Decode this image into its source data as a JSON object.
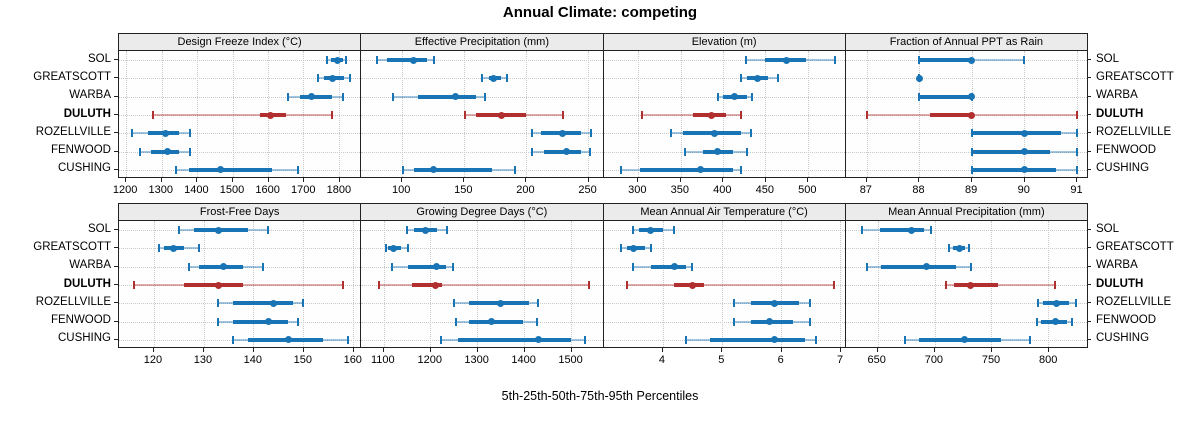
{
  "title": "Annual Climate: competing",
  "caption": "5th-25th-50th-75th-95th Percentiles",
  "sites": [
    "SOL",
    "GREATSCOTT",
    "WARBA",
    "DULUTH",
    "ROZELLVILLE",
    "FENWOOD",
    "CUSHING"
  ],
  "highlight_site": "DULUTH",
  "colors": {
    "series_blue": "#1874b4",
    "series_blue_light": "rgba(24,116,180,0.40)",
    "highlight_red": "#b22f2f",
    "highlight_red_light": "rgba(178,47,47,0.40)",
    "grid": "#c9c9c9",
    "strip_bg": "#ebebeb",
    "border": "#222222"
  },
  "chart_data": {
    "type": "dot-whisker-trellis",
    "layout": "2 rows x 4 cols",
    "percentile_levels": [
      5,
      25,
      50,
      75,
      95
    ],
    "panels": [
      {
        "title": "Design Freeze Index (°C)",
        "xlim": [
          1180,
          1860
        ],
        "ticks": [
          1200,
          1300,
          1400,
          1500,
          1600,
          1700,
          1800
        ],
        "values": {
          "SOL": [
            1765,
            1778,
            1795,
            1810,
            1820
          ],
          "GREATSCOTT": [
            1740,
            1758,
            1782,
            1814,
            1830
          ],
          "WARBA": [
            1655,
            1690,
            1722,
            1781,
            1810
          ],
          "DULUTH": [
            1275,
            1577,
            1608,
            1651,
            1780
          ],
          "ROZELLVILLE": [
            1217,
            1262,
            1312,
            1348,
            1380
          ],
          "FENWOOD": [
            1240,
            1271,
            1316,
            1348,
            1380
          ],
          "CUSHING": [
            1341,
            1376,
            1467,
            1610,
            1684
          ]
        }
      },
      {
        "title": "Effective Precipitation (mm)",
        "xlim": [
          67,
          262
        ],
        "ticks": [
          100,
          150,
          200,
          250
        ],
        "values": {
          "SOL": [
            80,
            88,
            109,
            120,
            126
          ],
          "GREATSCOTT": [
            165,
            170,
            174,
            180,
            185
          ],
          "WARBA": [
            93,
            113,
            143,
            160,
            167
          ],
          "DULUTH": [
            151,
            160,
            180,
            200,
            230
          ],
          "ROZELLVILLE": [
            205,
            212,
            230,
            245,
            253
          ],
          "FENWOOD": [
            205,
            215,
            233,
            245,
            252
          ],
          "CUSHING": [
            101,
            110,
            125,
            173,
            191
          ]
        }
      },
      {
        "title": "Elevation (m)",
        "xlim": [
          259,
          544
        ],
        "ticks": [
          300,
          350,
          400,
          450,
          500
        ],
        "values": {
          "SOL": [
            427,
            450,
            475,
            498,
            532
          ],
          "GREATSCOTT": [
            421,
            428,
            441,
            453,
            465
          ],
          "WARBA": [
            394,
            400,
            414,
            428,
            435
          ],
          "DULUTH": [
            304,
            365,
            386,
            404,
            421
          ],
          "ROZELLVILLE": [
            339,
            353,
            390,
            421,
            433
          ],
          "FENWOOD": [
            355,
            376,
            394,
            412,
            429
          ],
          "CUSHING": [
            280,
            302,
            373,
            412,
            421
          ]
        }
      },
      {
        "title": "Fraction of Annual PPT as Rain",
        "xlim": [
          86.6,
          91.2
        ],
        "ticks": [
          87,
          88,
          89,
          90,
          91
        ],
        "values": {
          "SOL": [
            88,
            88,
            89,
            89,
            90
          ],
          "GREATSCOTT": [
            88,
            88,
            88,
            88,
            88
          ],
          "WARBA": [
            88,
            88,
            89,
            89,
            89
          ],
          "DULUTH": [
            87,
            88.2,
            89,
            89,
            91
          ],
          "ROZELLVILLE": [
            89,
            89,
            90,
            90.7,
            91
          ],
          "FENWOOD": [
            89,
            89,
            90,
            90.5,
            91
          ],
          "CUSHING": [
            89,
            89,
            90,
            90.6,
            91
          ]
        }
      },
      {
        "title": "Frost-Free Days",
        "xlim": [
          113,
          161.5
        ],
        "ticks": [
          120,
          130,
          140,
          150,
          160
        ],
        "values": {
          "SOL": [
            125,
            128,
            133,
            139,
            143
          ],
          "GREATSCOTT": [
            121,
            122,
            124,
            126,
            129
          ],
          "WARBA": [
            127,
            129,
            134,
            138,
            142
          ],
          "DULUTH": [
            116,
            126,
            133,
            138,
            158
          ],
          "ROZELLVILLE": [
            133,
            136,
            144,
            148,
            150
          ],
          "FENWOOD": [
            133,
            136,
            143,
            147,
            149
          ],
          "CUSHING": [
            136,
            139,
            147,
            154,
            159
          ]
        }
      },
      {
        "title": "Growing Degree Days (°C)",
        "xlim": [
          1052,
          1568
        ],
        "ticks": [
          1100,
          1200,
          1300,
          1400,
          1500
        ],
        "values": {
          "SOL": [
            1150,
            1165,
            1190,
            1215,
            1235
          ],
          "GREATSCOTT": [
            1105,
            1110,
            1122,
            1138,
            1153
          ],
          "WARBA": [
            1117,
            1153,
            1213,
            1234,
            1249
          ],
          "DULUTH": [
            1090,
            1160,
            1210,
            1225,
            1540
          ],
          "ROZELLVILLE": [
            1250,
            1282,
            1350,
            1410,
            1430
          ],
          "FENWOOD": [
            1254,
            1282,
            1331,
            1399,
            1427
          ],
          "CUSHING": [
            1222,
            1260,
            1432,
            1500,
            1530
          ]
        }
      },
      {
        "title": "Mean Annual Air Temperature (°C)",
        "xlim": [
          3.0,
          7.08
        ],
        "ticks": [
          4,
          5,
          6,
          7
        ],
        "values": {
          "SOL": [
            3.5,
            3.6,
            3.8,
            4.0,
            4.2
          ],
          "GREATSCOTT": [
            3.3,
            3.4,
            3.5,
            3.7,
            3.8
          ],
          "WARBA": [
            3.5,
            3.8,
            4.2,
            4.4,
            4.5
          ],
          "DULUTH": [
            3.4,
            4.2,
            4.5,
            4.7,
            6.9
          ],
          "ROZELLVILLE": [
            5.2,
            5.5,
            5.9,
            6.3,
            6.5
          ],
          "FENWOOD": [
            5.2,
            5.5,
            5.8,
            6.2,
            6.5
          ],
          "CUSHING": [
            4.4,
            4.8,
            5.9,
            6.4,
            6.6
          ]
        }
      },
      {
        "title": "Mean Annual Precipitation (mm)",
        "xlim": [
          622,
          834
        ],
        "ticks": [
          650,
          700,
          750,
          800
        ],
        "values": {
          "SOL": [
            636,
            652,
            680,
            691,
            697
          ],
          "GREATSCOTT": [
            713,
            716,
            722,
            727,
            730
          ],
          "WARBA": [
            641,
            653,
            693,
            719,
            732
          ],
          "DULUTH": [
            710,
            717,
            732,
            756,
            806
          ],
          "ROZELLVILLE": [
            791,
            795,
            807,
            818,
            824
          ],
          "FENWOOD": [
            790,
            794,
            806,
            816,
            821
          ],
          "CUSHING": [
            674,
            686,
            726,
            758,
            784
          ]
        }
      }
    ]
  }
}
